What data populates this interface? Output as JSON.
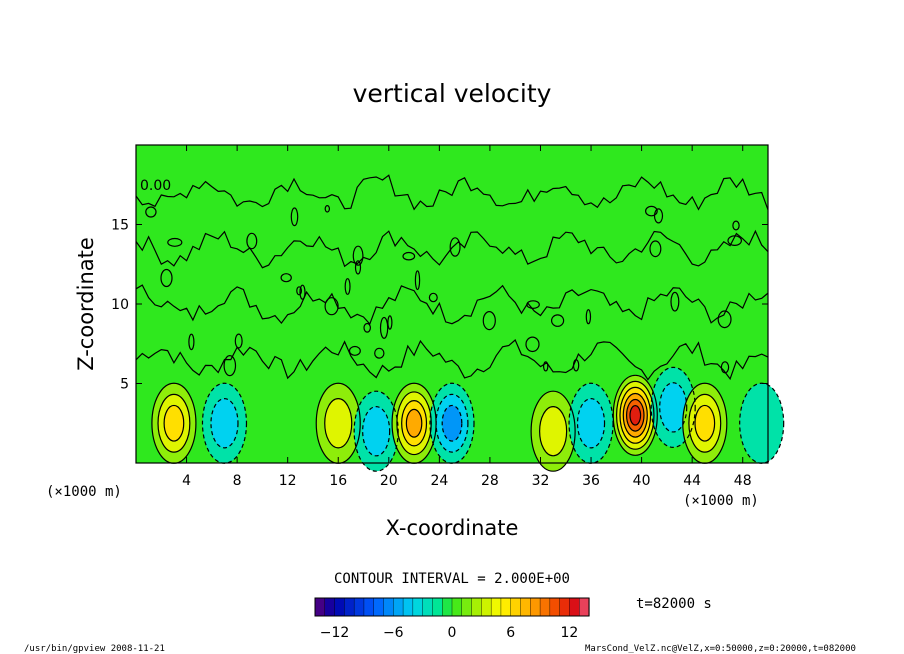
{
  "chart_data": {
    "type": "heatmap",
    "title": "vertical velocity",
    "xlabel": "X-coordinate",
    "ylabel": "Z-coordinate",
    "x_scale_note_left": "(×1000 m)",
    "x_scale_note_right": "(×1000 m)",
    "xlim": [
      0,
      50
    ],
    "ylim": [
      0,
      20
    ],
    "x_ticks": [
      4,
      8,
      12,
      16,
      20,
      24,
      28,
      32,
      36,
      40,
      44,
      48
    ],
    "y_ticks": [
      5,
      10,
      15
    ],
    "contour_interval_label": "CONTOUR INTERVAL = 2.000E+00",
    "contour_label": "0.00",
    "time_label": "t=82000 s",
    "colorbar": {
      "range": [
        -14,
        14
      ],
      "ticks": [
        -12,
        -6,
        0,
        6,
        12
      ],
      "tick_labels": [
        "−12",
        "−6",
        "0",
        "6",
        "12"
      ]
    },
    "cells": [
      {
        "x": 3,
        "z": 2.5,
        "w": 6
      },
      {
        "x": 7,
        "z": 2.5,
        "w": -4
      },
      {
        "x": 16,
        "z": 2.5,
        "w": 5
      },
      {
        "x": 19,
        "z": 2.0,
        "w": -5
      },
      {
        "x": 22,
        "z": 2.5,
        "w": 9
      },
      {
        "x": 25,
        "z": 2.5,
        "w": -6
      },
      {
        "x": 33,
        "z": 2.0,
        "w": 5
      },
      {
        "x": 36,
        "z": 2.5,
        "w": -4
      },
      {
        "x": 39.5,
        "z": 3.0,
        "w": 13
      },
      {
        "x": 42.5,
        "z": 3.5,
        "w": -5
      },
      {
        "x": 45,
        "z": 2.5,
        "w": 7
      },
      {
        "x": 49.5,
        "z": 2.5,
        "w": -3
      }
    ]
  },
  "footer": {
    "left": "/usr/bin/gpview   2008-11-21",
    "right": "MarsCond_VelZ.nc@VelZ,x=0:50000,z=0:20000,t=082000"
  }
}
